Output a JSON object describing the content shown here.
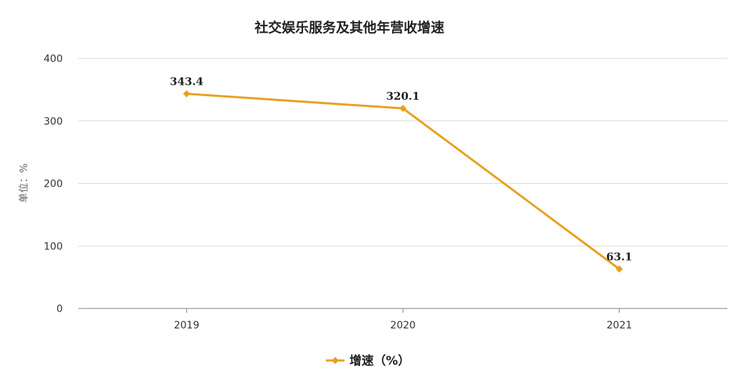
{
  "chart_data": {
    "type": "line",
    "title": "社交娱乐服务及其他年营收增速",
    "ylabel": "单位：%",
    "xlabel": "",
    "categories": [
      "2019",
      "2020",
      "2021"
    ],
    "ylim": [
      0,
      400
    ],
    "yticks": [
      0,
      100,
      200,
      300,
      400
    ],
    "grid": true,
    "legend_position": "bottom-center",
    "series": [
      {
        "name": "增速（%）",
        "values": [
          343.4,
          320.1,
          63.1
        ],
        "labels": [
          "343.4",
          "320.1",
          "63.1"
        ],
        "color": "#E8A020"
      }
    ]
  }
}
